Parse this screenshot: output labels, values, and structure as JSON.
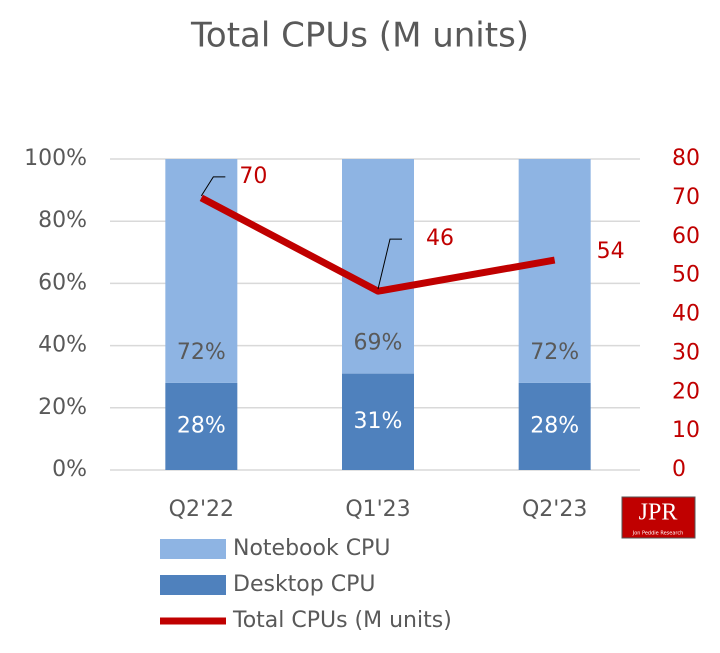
{
  "chart_data": {
    "type": "bar",
    "stacked": true,
    "title": "Total CPUs (M units)",
    "categories": [
      "Q2'22",
      "Q1'23",
      "Q2'23"
    ],
    "series": [
      {
        "name": "Notebook CPU",
        "color": "#8eb4e3",
        "values": [
          72,
          69,
          72
        ],
        "value_labels": [
          "72%",
          "69%",
          "72%"
        ]
      },
      {
        "name": "Desktop CPU",
        "color": "#4f81bd",
        "values": [
          28,
          31,
          28
        ],
        "value_labels": [
          "28%",
          "31%",
          "28%"
        ]
      },
      {
        "name": "Total CPUs (M units)",
        "type": "line",
        "axis": "y2",
        "color": "#c00000",
        "values": [
          70,
          46,
          54
        ]
      }
    ],
    "ylim": [
      0,
      100
    ],
    "yticks": [
      {
        "value": 0,
        "label": "0%"
      },
      {
        "value": 20,
        "label": "20%"
      },
      {
        "value": 40,
        "label": "40%"
      },
      {
        "value": 60,
        "label": "60%"
      },
      {
        "value": 80,
        "label": "80%"
      },
      {
        "value": 100,
        "label": "100%"
      }
    ],
    "y2lim": [
      0,
      80
    ],
    "y2ticks": [
      0,
      10,
      20,
      30,
      40,
      50,
      60,
      70,
      80
    ],
    "y2color": "#c00000",
    "grid": true,
    "logo": {
      "text": "JPR",
      "subtext": "Jon Peddie Research"
    }
  }
}
